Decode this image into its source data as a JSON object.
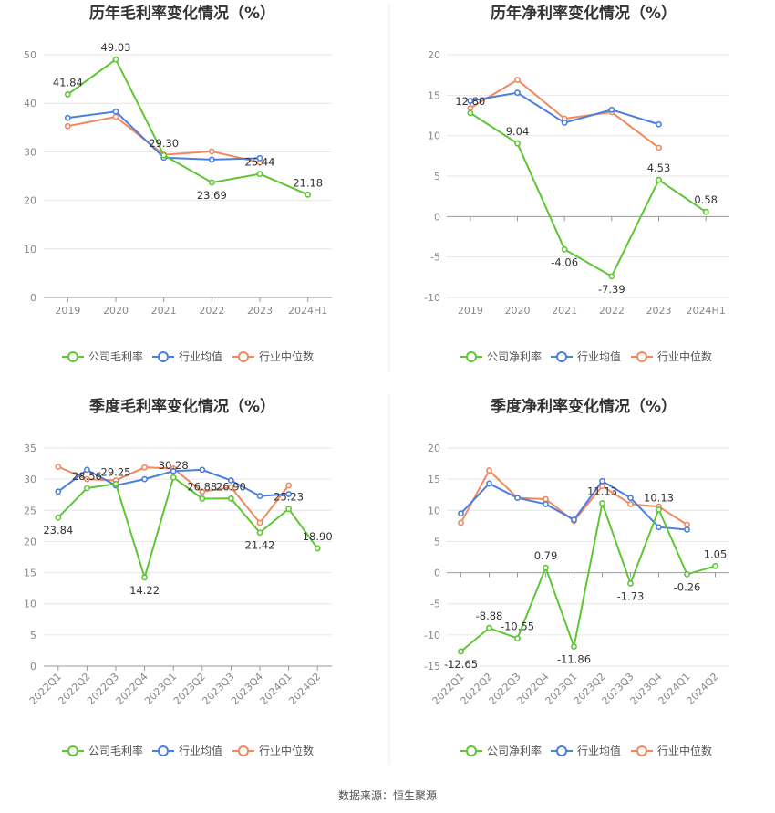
{
  "source": "数据来源：恒生聚源",
  "colors": {
    "company": "#5ec634",
    "avg": "#4a7fe0",
    "median": "#f0895e"
  },
  "legend_avg": "行业均值",
  "legend_median": "行业中位数",
  "chart_data": [
    {
      "type": "line",
      "title": "历年毛利率变化情况（%）",
      "categories": [
        "2019",
        "2020",
        "2021",
        "2022",
        "2023",
        "2024H1"
      ],
      "ylim": [
        0,
        50
      ],
      "yticks": [
        0,
        10,
        20,
        30,
        40,
        50
      ],
      "legend_position": "bottom",
      "series": [
        {
          "name": "公司毛利率",
          "key": "company",
          "values": [
            41.84,
            49.03,
            29.3,
            23.69,
            25.44,
            21.18
          ],
          "labels": [
            "41.84",
            "49.03",
            "29.30",
            "23.69",
            "25.44",
            "21.18"
          ]
        },
        {
          "name": "行业均值",
          "key": "avg",
          "values": [
            37.0,
            38.3,
            28.8,
            28.4,
            28.7,
            null
          ]
        },
        {
          "name": "行业中位数",
          "key": "median",
          "values": [
            35.3,
            37.2,
            29.4,
            30.1,
            27.8,
            null
          ]
        }
      ]
    },
    {
      "type": "line",
      "title": "历年净利率变化情况（%）",
      "categories": [
        "2019",
        "2020",
        "2021",
        "2022",
        "2023",
        "2024H1"
      ],
      "ylim": [
        -10,
        20
      ],
      "yticks": [
        -10,
        -5,
        0,
        5,
        10,
        15,
        20
      ],
      "legend_position": "bottom",
      "series": [
        {
          "name": "公司净利率",
          "key": "company",
          "values": [
            12.8,
            9.04,
            -4.06,
            -7.39,
            4.53,
            0.58
          ],
          "labels": [
            "12.80",
            "9.04",
            "-4.06",
            "-7.39",
            "4.53",
            "0.58"
          ]
        },
        {
          "name": "行业均值",
          "key": "avg",
          "values": [
            14.3,
            15.3,
            11.6,
            13.2,
            11.4,
            null
          ]
        },
        {
          "name": "行业中位数",
          "key": "median",
          "values": [
            13.4,
            16.9,
            12.1,
            12.9,
            8.5,
            null
          ]
        }
      ]
    },
    {
      "type": "line",
      "title": "季度毛利率变化情况（%）",
      "categories": [
        "2022Q1",
        "2022Q2",
        "2022Q3",
        "2022Q4",
        "2023Q1",
        "2023Q2",
        "2023Q3",
        "2023Q4",
        "2024Q1",
        "2024Q2"
      ],
      "ylim": [
        0,
        35
      ],
      "yticks": [
        0,
        5,
        10,
        15,
        20,
        25,
        30,
        35
      ],
      "legend_position": "bottom",
      "series": [
        {
          "name": "公司毛利率",
          "key": "company",
          "values": [
            23.84,
            28.56,
            29.25,
            14.22,
            30.28,
            26.88,
            26.9,
            21.42,
            25.23,
            18.9
          ],
          "labels": [
            "23.84",
            "28.56",
            "29.25",
            "14.22",
            "30.28",
            "26.88",
            "26.90",
            "21.42",
            "25.23",
            "18.90"
          ]
        },
        {
          "name": "行业均值",
          "key": "avg",
          "values": [
            28.0,
            31.5,
            29.0,
            30.0,
            31.3,
            31.5,
            29.8,
            27.3,
            27.6,
            null
          ]
        },
        {
          "name": "行业中位数",
          "key": "median",
          "values": [
            32.0,
            30.0,
            29.8,
            31.9,
            31.7,
            28.0,
            28.7,
            23.0,
            29.0,
            null
          ]
        }
      ]
    },
    {
      "type": "line",
      "title": "季度净利率变化情况（%）",
      "categories": [
        "2022Q1",
        "2022Q2",
        "2022Q3",
        "2022Q4",
        "2023Q1",
        "2023Q2",
        "2023Q3",
        "2023Q4",
        "2024Q1",
        "2024Q2"
      ],
      "ylim": [
        -15,
        20
      ],
      "yticks": [
        -15,
        -10,
        -5,
        0,
        5,
        10,
        15,
        20
      ],
      "legend_position": "bottom",
      "series": [
        {
          "name": "公司净利率",
          "key": "company",
          "values": [
            -12.65,
            -8.88,
            -10.55,
            0.79,
            -11.86,
            11.13,
            -1.73,
            10.13,
            -0.26,
            1.05
          ],
          "labels": [
            "-12.65",
            "-8.88",
            "-10.55",
            "0.79",
            "-11.86",
            "11.13",
            "-1.73",
            "10.13",
            "-0.26",
            "1.05"
          ]
        },
        {
          "name": "行业均值",
          "key": "avg",
          "values": [
            9.5,
            14.3,
            12.0,
            11.0,
            8.5,
            14.7,
            12.0,
            7.3,
            6.9,
            null
          ]
        },
        {
          "name": "行业中位数",
          "key": "median",
          "values": [
            8.0,
            16.4,
            12.0,
            11.8,
            8.3,
            13.9,
            11.0,
            10.6,
            7.7,
            null
          ]
        }
      ]
    }
  ]
}
